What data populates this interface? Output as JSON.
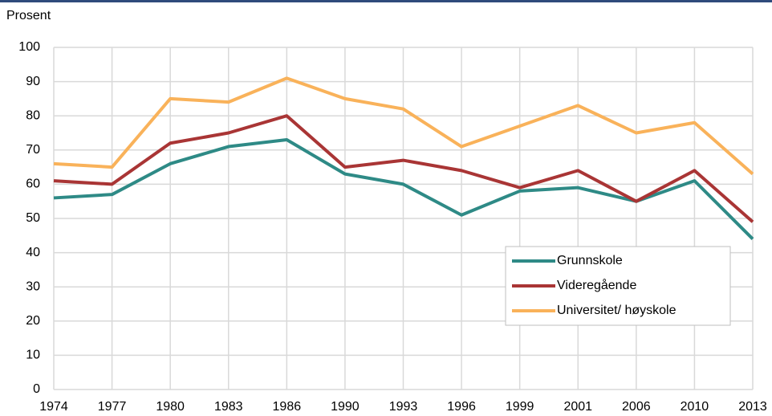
{
  "chart_data": {
    "type": "line",
    "y_label": "Prosent",
    "categories": [
      "1974",
      "1977",
      "1980",
      "1983",
      "1986",
      "1990",
      "1993",
      "1996",
      "1999",
      "2001",
      "2006",
      "2010",
      "2013"
    ],
    "series": [
      {
        "name": "Grunnskole",
        "color": "#2e8a86",
        "values": [
          56,
          57,
          66,
          71,
          73,
          63,
          60,
          51,
          58,
          59,
          55,
          61,
          44
        ]
      },
      {
        "name": "Videregående",
        "color": "#a93535",
        "values": [
          61,
          60,
          72,
          75,
          80,
          65,
          67,
          64,
          59,
          64,
          55,
          64,
          49
        ]
      },
      {
        "name": "Universitet/ høyskole",
        "color": "#f9b25a",
        "values": [
          66,
          65,
          85,
          84,
          91,
          85,
          82,
          71,
          77,
          83,
          75,
          78,
          63
        ]
      }
    ],
    "ylim": [
      0,
      100
    ],
    "yticks": [
      0,
      10,
      20,
      30,
      40,
      50,
      60,
      70,
      80,
      90,
      100
    ],
    "grid": true,
    "legend": "lower right"
  }
}
